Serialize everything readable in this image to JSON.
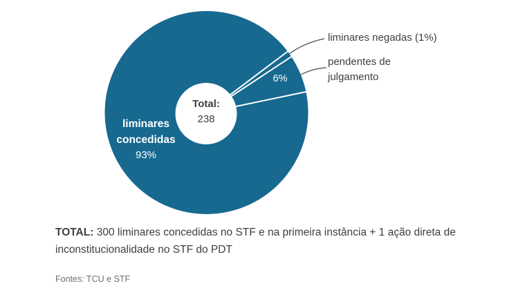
{
  "chart_data": {
    "type": "pie",
    "subtype": "donut",
    "unit": "%",
    "slices": [
      {
        "label": "liminares negadas",
        "value_pct": 1,
        "display_label": "liminares negadas (1%)"
      },
      {
        "label": "pendentes de julgamento",
        "value_pct": 6,
        "display_label": "6%"
      },
      {
        "label": "liminares concedidas",
        "value_pct": 93,
        "display_label": "93%"
      }
    ],
    "center_label": "Total:",
    "center_value": "238",
    "slice_color": "#176990",
    "divider_color": "#ffffff",
    "start_angle_deg": 53,
    "legend_position": "labels-on-chart",
    "note": "TOTAL: 300 liminares concedidas no STF e na primeira instância + 1 ação direta de inconstitucionalidade no STF do PDT",
    "source": "Fontes: TCU e STF"
  },
  "labels": {
    "negadas_label": "liminares negadas (1%)",
    "pendentes_label_line1": "pendentes de",
    "pendentes_label_line2": "julgamento",
    "pendentes_pct": "6%",
    "concedidas_line1": "liminares",
    "concedidas_line2": "concedidas",
    "concedidas_pct": "93%",
    "center_title": "Total:",
    "center_value": "238"
  },
  "footer": {
    "total_label": "TOTAL:",
    "total_text_line1": "300 liminares concedidas no STF e na primeira instância + 1 ação direta de",
    "total_text_line2": "inconstitucionalidade no STF do PDT",
    "source": "Fontes: TCU e STF"
  },
  "colors": {
    "pie": "#176990",
    "text_dark": "#3e3e3e",
    "text_white": "#ffffff",
    "source_gray": "#6d6d6d",
    "leader_line": "#4b4b4b"
  }
}
